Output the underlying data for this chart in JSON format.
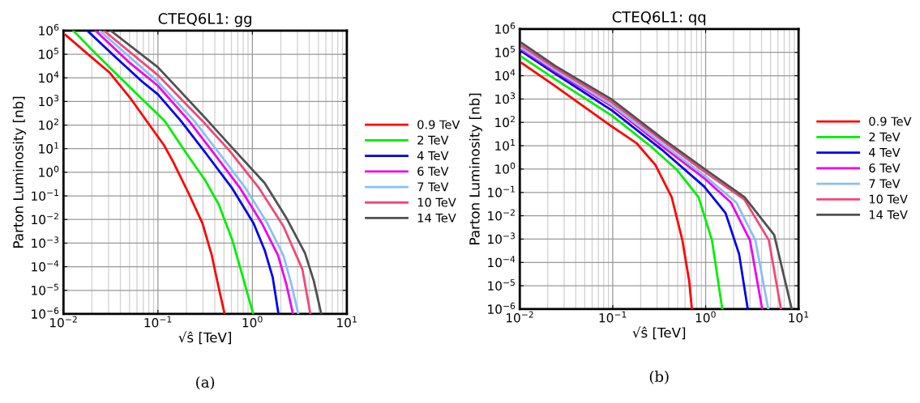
{
  "chart_data": [
    {
      "type": "line",
      "title": "CTEQ6L1: gg",
      "xlabel": "√ŝ [TeV]",
      "ylabel": "Parton Luminosity [nb]",
      "log": "xy",
      "grid": true,
      "legend": "right",
      "marker": "none",
      "line_style": "solid",
      "xlim": [
        0.01,
        10
      ],
      "xticks": [
        {
          "value": 0.01,
          "label": "10$^{−2}$"
        },
        {
          "value": 0.1,
          "label": "10$^{−1}$"
        },
        {
          "value": 1,
          "label": "10$^{0}$"
        },
        {
          "value": 10,
          "label": "10$^{1}$"
        }
      ],
      "ylim": [
        1e-06,
        1000000.0
      ],
      "yticks": [
        {
          "value": 1e-06,
          "label": "10$^{−6}$"
        },
        {
          "value": 1e-05,
          "label": "10$^{−5}$"
        },
        {
          "value": 0.0001,
          "label": "10$^{−4}$"
        },
        {
          "value": 0.001,
          "label": "10$^{−3}$"
        },
        {
          "value": 0.01,
          "label": "10$^{−2}$"
        },
        {
          "value": 0.1,
          "label": "10$^{−1}$"
        },
        {
          "value": 1,
          "label": "10$^{0}$"
        },
        {
          "value": 10,
          "label": "10$^{1}$"
        },
        {
          "value": 100,
          "label": "10$^{2}$"
        },
        {
          "value": 1000,
          "label": "10$^{3}$"
        },
        {
          "value": 10000.0,
          "label": "10$^{4}$"
        },
        {
          "value": 100000.0,
          "label": "10$^{5}$"
        },
        {
          "value": 1000000.0,
          "label": "10$^{6}$"
        }
      ],
      "annotations": [
        "(a)"
      ],
      "series": [
        {
          "name": "0.9 TeV",
          "color": "#ff0000",
          "x": [
            0.0105,
            0.0179,
            0.0306,
            0.0521,
            0.0832,
            0.116,
            0.144,
            0.213,
            0.296,
            0.372,
            0.44,
            0.508
          ],
          "values": [
            660000.0,
            105000.0,
            17000.0,
            1230,
            89,
            14,
            2.9,
            0.12,
            0.0069,
            0.0003,
            1.3e-05,
            1e-06
          ]
        },
        {
          "name": "2 TeV",
          "color": "#00ee00",
          "x": [
            0.0127,
            0.0205,
            0.0349,
            0.0596,
            0.118,
            0.2,
            0.316,
            0.44,
            0.611,
            0.794,
            1.02
          ],
          "values": [
            1000000.0,
            140000.0,
            17000.0,
            2100,
            150,
            6.3,
            0.46,
            0.044,
            0.0014,
            3.6e-05,
            1e-06
          ]
        },
        {
          "name": "4 TeV",
          "color": "#0000ee",
          "x": [
            0.0179,
            0.0349,
            0.0679,
            0.1,
            0.175,
            0.338,
            0.611,
            1.03,
            1.35,
            1.64,
            1.89
          ],
          "values": [
            1000000.0,
            81000.0,
            7000,
            2000,
            150,
            4.9,
            0.21,
            0.0069,
            0.0005,
            3.6e-05,
            1e-06
          ]
        },
        {
          "name": "6 TeV",
          "color": "#ee00ee",
          "x": [
            0.0219,
            0.0488,
            0.1,
            0.213,
            0.411,
            0.743,
            1.26,
            1.87,
            2.29,
            2.69
          ],
          "values": [
            1000000.0,
            48000.0,
            4600,
            150,
            4.9,
            0.21,
            0.0069,
            0.0003,
            1.8e-05,
            1e-06
          ]
        },
        {
          "name": "7 TeV",
          "color": "#88c0f8",
          "x": [
            0.0242,
            0.1,
            0.243,
            0.469,
            0.849,
            1.44,
            2.13,
            2.57,
            3.06
          ],
          "values": [
            1000000.0,
            6800,
            150,
            4.9,
            0.21,
            0.0069,
            0.0003,
            2e-05,
            1e-06
          ]
        },
        {
          "name": "10 TeV",
          "color": "#f04878",
          "x": [
            0.0268,
            0.1,
            0.296,
            0.571,
            1.18,
            2.13,
            3.38,
            4.11
          ],
          "values": [
            1000000.0,
            13000.0,
            150,
            8.3,
            0.21,
            0.0052,
            7.9e-05,
            1e-06
          ]
        },
        {
          "name": "14 TeV",
          "color": "#505050",
          "x": [
            0.0316,
            0.1,
            0.338,
            0.652,
            1.35,
            2.28,
            3.6,
            4.47,
            5.36
          ],
          "values": [
            1000000.0,
            28000.0,
            150,
            8.3,
            0.35,
            0.012,
            0.00038,
            2.5e-05,
            1e-06
          ]
        }
      ]
    },
    {
      "type": "line",
      "title": "CTEQ6L1: qq",
      "xlabel": "√ŝ [TeV]",
      "ylabel": "Parton Luminosity [nb]",
      "log": "xy",
      "grid": true,
      "legend": "right",
      "marker": "none",
      "line_style": "solid",
      "xlim": [
        0.01,
        10
      ],
      "xticks": [
        {
          "value": 0.01,
          "label": "10$^{−2}$"
        },
        {
          "value": 0.1,
          "label": "10$^{−1}$"
        },
        {
          "value": 1,
          "label": "10$^{0}$"
        },
        {
          "value": 10,
          "label": "10$^{1}$"
        }
      ],
      "ylim": [
        1e-06,
        1000000.0
      ],
      "yticks": [
        {
          "value": 1e-06,
          "label": "10$^{−6}$"
        },
        {
          "value": 1e-05,
          "label": "10$^{−5}$"
        },
        {
          "value": 0.0001,
          "label": "10$^{−4}$"
        },
        {
          "value": 0.001,
          "label": "10$^{−3}$"
        },
        {
          "value": 0.01,
          "label": "10$^{−2}$"
        },
        {
          "value": 0.1,
          "label": "10$^{−1}$"
        },
        {
          "value": 1,
          "label": "10$^{0}$"
        },
        {
          "value": 10,
          "label": "10$^{1}$"
        },
        {
          "value": 100,
          "label": "10$^{2}$"
        },
        {
          "value": 1000,
          "label": "10$^{3}$"
        },
        {
          "value": 10000.0,
          "label": "10$^{4}$"
        },
        {
          "value": 100000.0,
          "label": "10$^{5}$"
        },
        {
          "value": 1000000.0,
          "label": "10$^{6}$"
        }
      ],
      "annotations": [
        "(b)"
      ],
      "series": [
        {
          "name": "0.9 TeV",
          "color": "#ff0000",
          "x": [
            0.0105,
            0.0242,
            0.0986,
            0.18,
            0.288,
            0.431,
            0.562,
            0.665,
            0.711
          ],
          "values": [
            35000.0,
            3500,
            65,
            13,
            1.5,
            0.063,
            0.00089,
            1.6e-05,
            1e-06
          ]
        },
        {
          "name": "2 TeV",
          "color": "#00ee00",
          "x": [
            0.0105,
            0.0242,
            0.0986,
            0.252,
            0.492,
            0.839,
            1.17,
            1.51
          ],
          "values": [
            63000.0,
            6900,
            190,
            10,
            0.91,
            0.063,
            0.00089,
            1e-06
          ]
        },
        {
          "name": "4 TeV",
          "color": "#0000ee",
          "x": [
            0.0105,
            0.0242,
            0.0986,
            0.352,
            0.962,
            1.64,
            2.29,
            2.84
          ],
          "values": [
            110000.0,
            12000.0,
            320,
            5.9,
            0.18,
            0.013,
            0.00023,
            1e-06
          ]
        },
        {
          "name": "6 TeV",
          "color": "#ee00ee",
          "x": [
            0.0105,
            0.0242,
            0.0986,
            0.352,
            0.962,
            1.87,
            3.0,
            4.06
          ],
          "values": [
            130000.0,
            15000.0,
            480,
            8.7,
            0.41,
            0.037,
            0.00089,
            1e-06
          ]
        },
        {
          "name": "7 TeV",
          "color": "#88c0f8",
          "x": [
            0.0105,
            0.0242,
            0.0986,
            0.352,
            0.962,
            2.14,
            3.43,
            4.72
          ],
          "values": [
            150000.0,
            17000.0,
            550,
            11,
            0.54,
            0.037,
            0.00089,
            1e-06
          ]
        },
        {
          "name": "10 TeV",
          "color": "#f04878",
          "x": [
            0.0105,
            0.0242,
            0.0986,
            0.352,
            0.962,
            2.62,
            4.79,
            6.47
          ],
          "values": [
            190000.0,
            21000.0,
            710,
            15,
            0.79,
            0.049,
            0.00089,
            1e-06
          ]
        },
        {
          "name": "14 TeV",
          "color": "#505050",
          "x": [
            0.0105,
            0.0242,
            0.0986,
            0.352,
            0.962,
            2.62,
            5.47,
            8.45
          ],
          "values": [
            250000.0,
            26000.0,
            930,
            19,
            1.05,
            0.063,
            0.0015,
            1e-06
          ]
        }
      ]
    }
  ]
}
